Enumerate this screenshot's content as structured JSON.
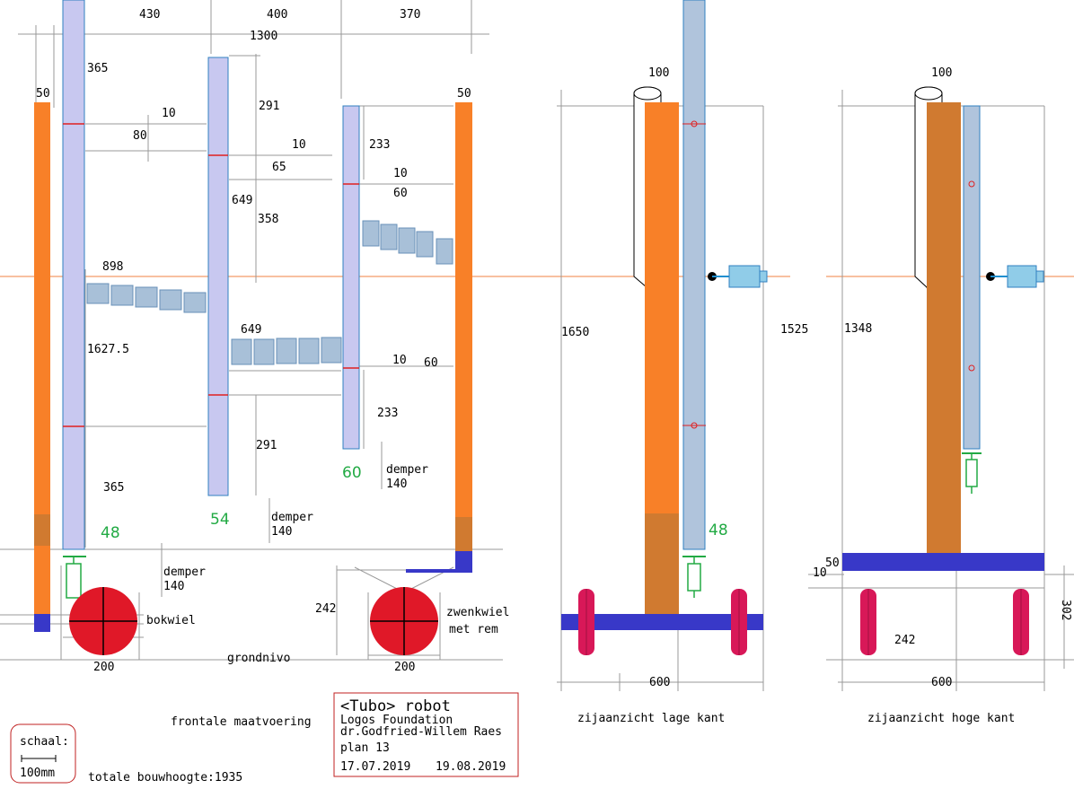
{
  "top_dims": {
    "d430": "430",
    "d400": "400",
    "d370": "370",
    "d1300": "1300"
  },
  "front_dims": {
    "d50a": "50",
    "d50b": "50",
    "d365a": "365",
    "d365b": "365",
    "d10a": "10",
    "d80": "80",
    "d291a": "291",
    "d291b": "291",
    "d10b": "10",
    "d65": "65",
    "d233a": "233",
    "d233b": "233",
    "d10c": "10",
    "d60a": "60",
    "d649a": "649",
    "d649b": "649",
    "d358": "358",
    "d898": "898",
    "d1627": "1627.5",
    "d10d": "10",
    "d60b": "60",
    "d242": "242",
    "d200a": "200",
    "d200b": "200"
  },
  "green_labels": {
    "g48a": "48",
    "g54": "54",
    "g60": "60",
    "g48b": "48"
  },
  "dampers": {
    "demper1": "demper",
    "demper1val": "140",
    "demper2": "demper",
    "demper2val": "140",
    "demper3": "demper",
    "demper3val": "140"
  },
  "wheel_labels": {
    "bokwiel": "bokwiel",
    "zwenkwiel": "zwenkwiel",
    "metrem": "met rem"
  },
  "ground": "grondnivo",
  "side_low": {
    "d100": "100",
    "d1650": "1650",
    "d1525": "1525",
    "d600": "600"
  },
  "side_high": {
    "d100": "100",
    "d1348": "1348",
    "d50": "50",
    "d10": "10",
    "d302": "302",
    "d242": "242",
    "d600": "600"
  },
  "captions": {
    "front": "frontale maatvoering",
    "side_low": "zijaanzicht lage kant",
    "side_high": "zijaanzicht hoge kant",
    "total_height": "totale bouwhoogte:1935"
  },
  "scale": {
    "label": "schaal:",
    "unit": "100mm"
  },
  "title_block": {
    "title": "<Tubo> robot",
    "org": "Logos Foundation",
    "author": "dr.Godfried-Willem Raes",
    "plan": "plan 13",
    "date1": "17.07.2019",
    "date2": "19.08.2019"
  },
  "colors": {
    "orange": "#f88028",
    "dark_orange": "#d07a30",
    "lavender": "#c8c8f0",
    "tube_blue": "#b0c4dc",
    "base_blue": "#3838c8",
    "wheel_red": "#e01828",
    "pink_wheel": "#d81858",
    "title_border": "#c02020",
    "green": "#22aa44"
  }
}
